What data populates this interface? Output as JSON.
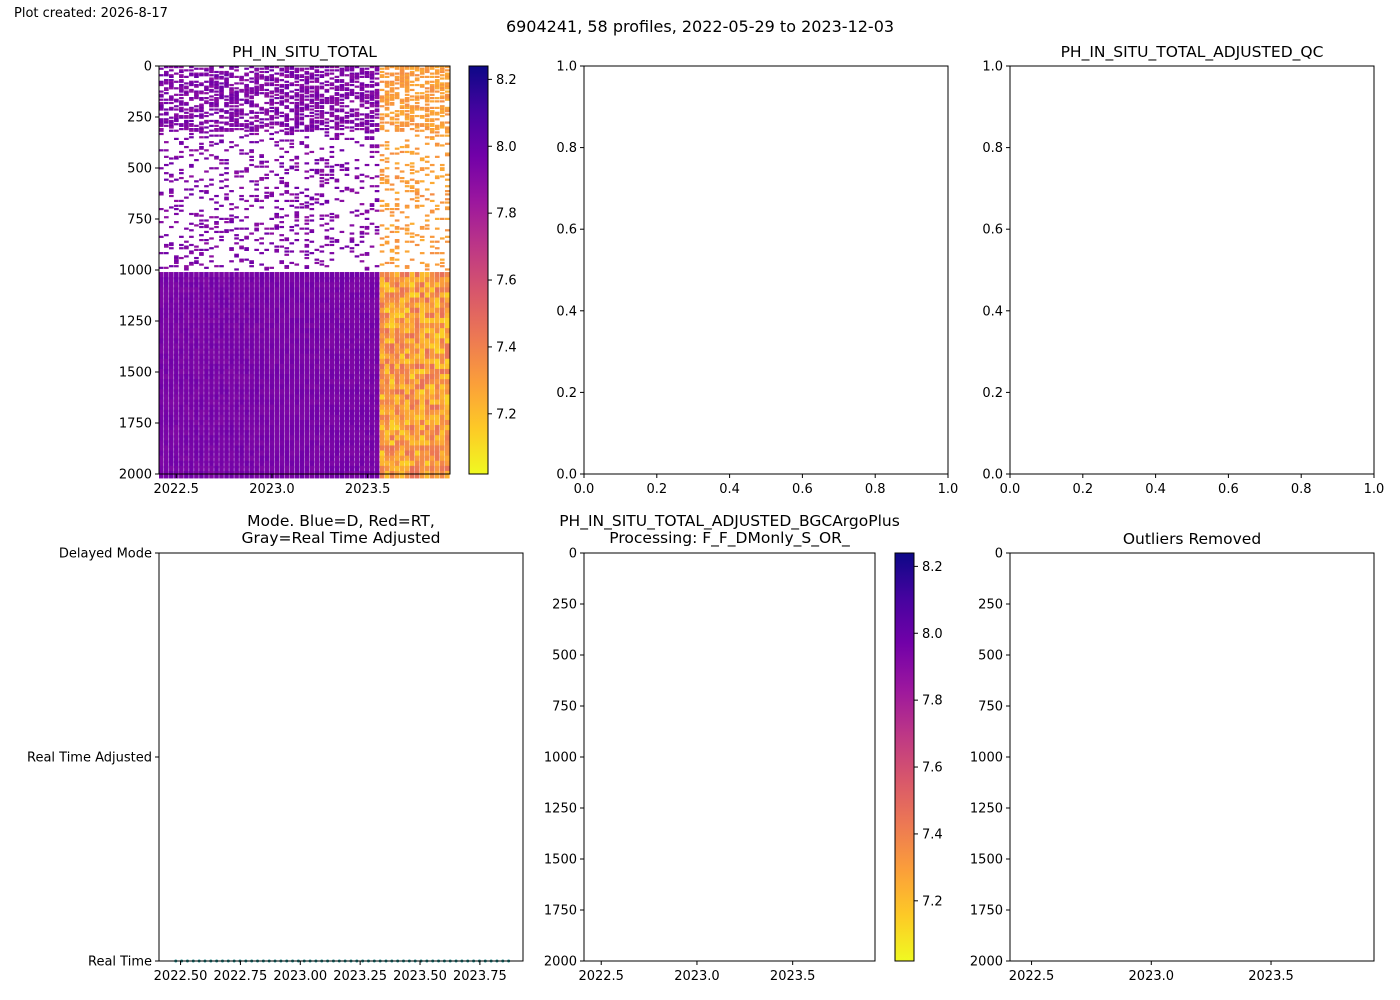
{
  "page": {
    "created_label": "Plot created: 2026-8-17",
    "suptitle": "6904241, 58 profiles, 2022-05-29 to 2023-12-03"
  },
  "colors": {
    "plasma": [
      "#f0f921",
      "#fdca26",
      "#fb9f3a",
      "#ed7953",
      "#d8576b",
      "#bd3786",
      "#9c179e",
      "#7201a8",
      "#46039f",
      "#0d0887"
    ],
    "mode_dots": "#1f8a8a",
    "axis": "#000000",
    "background": "#ffffff"
  },
  "chart_data": [
    {
      "id": "ph-raw",
      "type": "heatmap",
      "title": "PH_IN_SITU_TOTAL",
      "xlabel": "",
      "ylabel": "",
      "xlim": [
        2022.41,
        2023.93
      ],
      "ylim": [
        2000,
        0
      ],
      "xticks": [
        2022.5,
        2023.0,
        2023.5
      ],
      "xtick_labels": [
        "2022.5",
        "2023.0",
        "2023.5"
      ],
      "yticks": [
        0,
        250,
        500,
        750,
        1000,
        1250,
        1500,
        1750,
        2000
      ],
      "ytick_labels": [
        "0",
        "250",
        "500",
        "750",
        "1000",
        "1250",
        "1500",
        "1750",
        "2000"
      ],
      "grid": false,
      "profile_count": 58,
      "time_range": [
        2022.41,
        2023.93
      ],
      "depth_range": [
        0,
        2000
      ],
      "regimes": [
        {
          "t_start": 2022.41,
          "t_end": 2023.54,
          "value_upper": 7.93,
          "value_deep": 7.95
        },
        {
          "t_start": 2023.54,
          "t_end": 2023.93,
          "value_upper": 7.3,
          "value_deep": 7.3
        }
      ],
      "colorbar": {
        "vmin": 7.02,
        "vmax": 8.24,
        "ticks": [
          7.2,
          7.4,
          7.6,
          7.8,
          8.0,
          8.2
        ],
        "tick_labels": [
          "7.2",
          "7.4",
          "7.6",
          "7.8",
          "8.0",
          "8.2"
        ]
      }
    },
    {
      "id": "ph-adjusted-qc",
      "type": "scatter",
      "title": "",
      "xlim": [
        0,
        1
      ],
      "ylim": [
        0,
        1
      ],
      "xticks": [
        0,
        0.2,
        0.4,
        0.6,
        0.8,
        1.0
      ],
      "xtick_labels": [
        "0.0",
        "0.2",
        "0.4",
        "0.6",
        "0.8",
        "1.0"
      ],
      "yticks": [
        0,
        0.2,
        0.4,
        0.6,
        0.8,
        1.0
      ],
      "ytick_labels": [
        "0.0",
        "0.2",
        "0.4",
        "0.6",
        "0.8",
        "1.0"
      ],
      "points": []
    },
    {
      "id": "ph-adjusted-qc-2",
      "type": "scatter",
      "title": "PH_IN_SITU_TOTAL_ADJUSTED_QC",
      "xlim": [
        0,
        1
      ],
      "ylim": [
        0,
        1
      ],
      "xticks": [
        0,
        0.2,
        0.4,
        0.6,
        0.8,
        1.0
      ],
      "xtick_labels": [
        "0.0",
        "0.2",
        "0.4",
        "0.6",
        "0.8",
        "1.0"
      ],
      "yticks": [
        0,
        0.2,
        0.4,
        0.6,
        0.8,
        1.0
      ],
      "ytick_labels": [
        "0.0",
        "0.2",
        "0.4",
        "0.6",
        "0.8",
        "1.0"
      ],
      "points": []
    },
    {
      "id": "data-mode",
      "type": "scatter",
      "title": "Mode. Blue=D, Red=RT,",
      "subtitle": "Gray=Real Time Adjusted",
      "xlim": [
        2022.41,
        2023.93
      ],
      "ylim": [
        0,
        2
      ],
      "xticks": [
        2022.5,
        2022.75,
        2023.0,
        2023.25,
        2023.5,
        2023.75
      ],
      "xtick_labels": [
        "2022.50",
        "2022.75",
        "2023.00",
        "2023.25",
        "2023.50",
        "2023.75"
      ],
      "yticks": [
        0,
        1,
        2
      ],
      "ytick_labels": [
        "Real Time",
        "Real Time Adjusted",
        "Delayed Mode"
      ],
      "series": [
        {
          "mode": 0,
          "x_start": 2022.48,
          "x_end": 2023.87,
          "count": 58
        }
      ]
    },
    {
      "id": "ph-bgcargoplus",
      "type": "heatmap",
      "title": "PH_IN_SITU_TOTAL_ADJUSTED_BGCArgoPlus",
      "subtitle": "Processing: F_F_DMonly_S_OR_",
      "xlim": [
        2022.41,
        2023.93
      ],
      "ylim": [
        2000,
        0
      ],
      "xticks": [
        2022.5,
        2023.0,
        2023.5
      ],
      "xtick_labels": [
        "2022.5",
        "2023.0",
        "2023.5"
      ],
      "yticks": [
        0,
        250,
        500,
        750,
        1000,
        1250,
        1500,
        1750,
        2000
      ],
      "ytick_labels": [
        "0",
        "250",
        "500",
        "750",
        "1000",
        "1250",
        "1500",
        "1750",
        "2000"
      ],
      "cells": [],
      "colorbar": {
        "vmin": 7.02,
        "vmax": 8.24,
        "ticks": [
          7.2,
          7.4,
          7.6,
          7.8,
          8.0,
          8.2
        ],
        "tick_labels": [
          "7.2",
          "7.4",
          "7.6",
          "7.8",
          "8.0",
          "8.2"
        ]
      }
    },
    {
      "id": "outliers-removed",
      "type": "scatter",
      "title": "Outliers Removed",
      "xlim": [
        2022.41,
        2023.93
      ],
      "ylim": [
        2000,
        0
      ],
      "xticks": [
        2022.5,
        2023.0,
        2023.5
      ],
      "xtick_labels": [
        "2022.5",
        "2023.0",
        "2023.5"
      ],
      "yticks": [
        0,
        250,
        500,
        750,
        1000,
        1250,
        1500,
        1750,
        2000
      ],
      "ytick_labels": [
        "0",
        "250",
        "500",
        "750",
        "1000",
        "1250",
        "1500",
        "1750",
        "2000"
      ],
      "points": []
    }
  ]
}
